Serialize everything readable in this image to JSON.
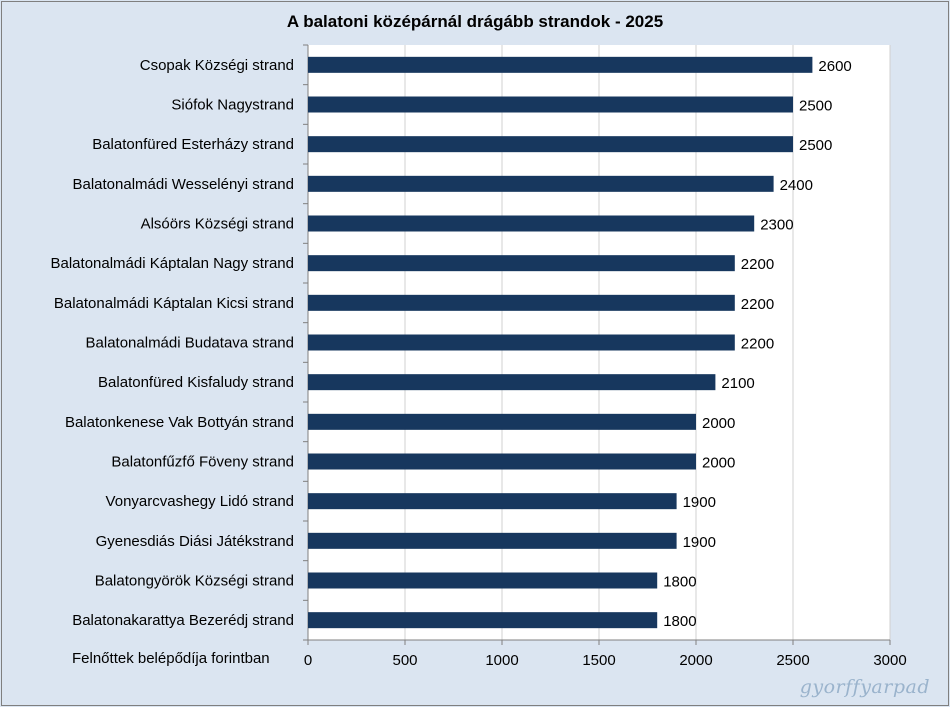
{
  "chart_data": {
    "type": "bar",
    "orientation": "horizontal",
    "title": "A balatoni középárnál drágább strandok - 2025",
    "xlabel": "Felnőttek  belépődíja forintban",
    "categories": [
      "Csopak Községi strand",
      "Siófok Nagystrand",
      "Balatonfüred Esterházy strand",
      "Balatonalmádi Wesselényi strand",
      "Alsóörs Községi strand",
      "Balatonalmádi Káptalan Nagy strand",
      "Balatonalmádi Káptalan Kicsi strand",
      "Balatonalmádi Budatava strand",
      "Balatonfüred Kisfaludy strand",
      "Balatonkenese Vak Bottyán strand",
      "Balatonfűzfő Föveny strand",
      "Vonyarcvashegy Lidó strand",
      "Gyenesdiás Diási Játékstrand",
      "Balatongyörök Községi strand",
      "Balatonakarattya Bezerédj strand"
    ],
    "values": [
      2600,
      2500,
      2500,
      2400,
      2300,
      2200,
      2200,
      2200,
      2100,
      2000,
      2000,
      1900,
      1900,
      1800,
      1800
    ],
    "xlim": [
      0,
      3000
    ],
    "xticks": [
      "0",
      "500",
      "1000",
      "1500",
      "2000",
      "2500",
      "3000"
    ],
    "bar_color": "#17375e",
    "plot_background": "#ffffff",
    "page_background": "#dbe5f1",
    "grid": true
  },
  "watermark": "gyorffyarpad"
}
